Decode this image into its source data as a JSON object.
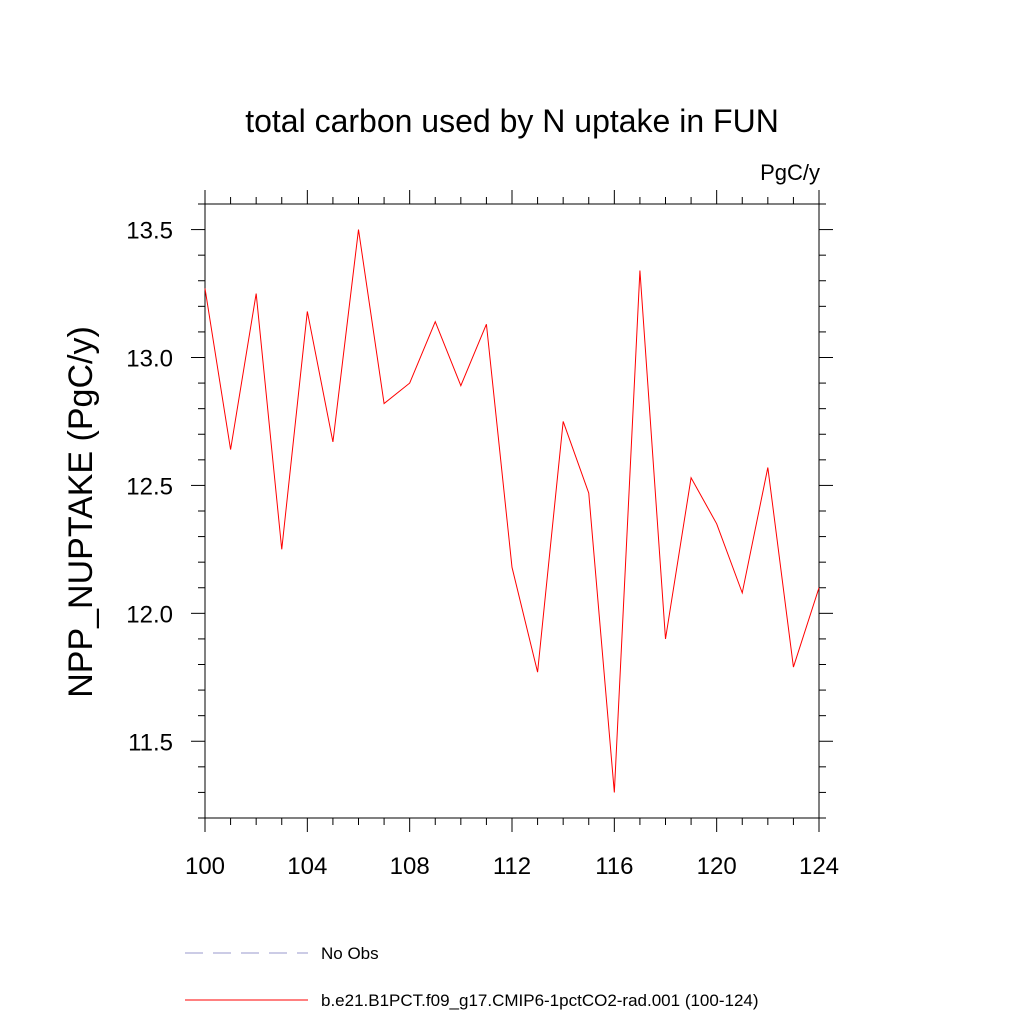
{
  "chart_data": {
    "type": "line",
    "title": "total carbon used by N uptake in FUN",
    "units_label": "PgC/y",
    "xlabel": "",
    "ylabel": "NPP_NUPTAKE  (PgC/y)",
    "xlim": [
      100,
      124
    ],
    "ylim": [
      11.2,
      13.6
    ],
    "xticks": [
      100,
      104,
      108,
      112,
      116,
      120,
      124
    ],
    "xtick_labels": [
      "100",
      "104",
      "108",
      "112",
      "116",
      "120",
      "124"
    ],
    "yticks": [
      11.5,
      12.0,
      12.5,
      13.0,
      13.5
    ],
    "ytick_labels": [
      "11.5",
      "12.0",
      "12.5",
      "13.0",
      "13.5"
    ],
    "x_minor_step": 1,
    "y_minor_step": 0.1,
    "grid": false,
    "legend_position": "bottom",
    "series": [
      {
        "name": "No Obs",
        "color": "#9999cc",
        "dash": "dashed",
        "x": [],
        "y": []
      },
      {
        "name": "b.e21.B1PCT.f09_g17.CMIP6-1pctCO2-rad.001 (100-124)",
        "color": "#ff0000",
        "dash": "solid",
        "x": [
          100,
          101,
          102,
          103,
          104,
          105,
          106,
          107,
          108,
          109,
          110,
          111,
          112,
          113,
          114,
          115,
          116,
          117,
          118,
          119,
          120,
          121,
          122,
          123,
          124
        ],
        "y": [
          13.27,
          12.64,
          13.25,
          12.25,
          13.18,
          12.67,
          13.5,
          12.82,
          12.9,
          13.14,
          12.89,
          13.13,
          12.18,
          11.77,
          12.75,
          12.47,
          11.3,
          13.34,
          11.9,
          12.53,
          12.35,
          12.08,
          12.57,
          11.79,
          12.1
        ]
      }
    ]
  }
}
